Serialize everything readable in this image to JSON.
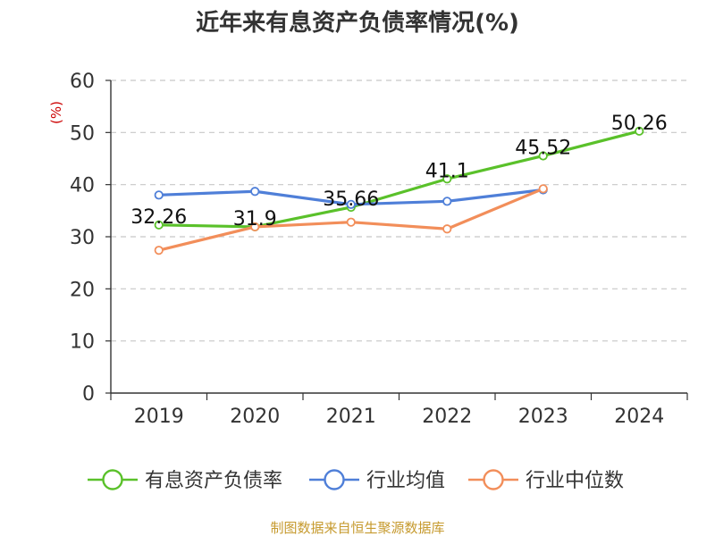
{
  "chart_data": {
    "type": "line",
    "title": "近年来有息资产负债率情况(%)",
    "ylabel": "(%)",
    "xlabel": "",
    "categories": [
      "2019",
      "2020",
      "2021",
      "2022",
      "2023",
      "2024"
    ],
    "ylim": [
      0,
      60
    ],
    "yticks": [
      0,
      10,
      20,
      30,
      40,
      50,
      60
    ],
    "grid": true,
    "legend_position": "bottom",
    "series": [
      {
        "name": "有息资产负债率",
        "color": "#5ac12a",
        "values": [
          32.26,
          31.9,
          35.66,
          41.1,
          45.52,
          50.26
        ],
        "data_labels": [
          "32.26",
          "31.9",
          "35.66",
          "41.1",
          "45.52",
          "50.26"
        ]
      },
      {
        "name": "行业均值",
        "color": "#4f7fd8",
        "values": [
          38.0,
          38.7,
          36.2,
          36.8,
          39.0,
          null
        ]
      },
      {
        "name": "行业中位数",
        "color": "#f28e5a",
        "values": [
          27.4,
          31.9,
          32.8,
          31.5,
          39.2,
          null
        ]
      }
    ]
  },
  "source": "制图数据来自恒生聚源数据库"
}
